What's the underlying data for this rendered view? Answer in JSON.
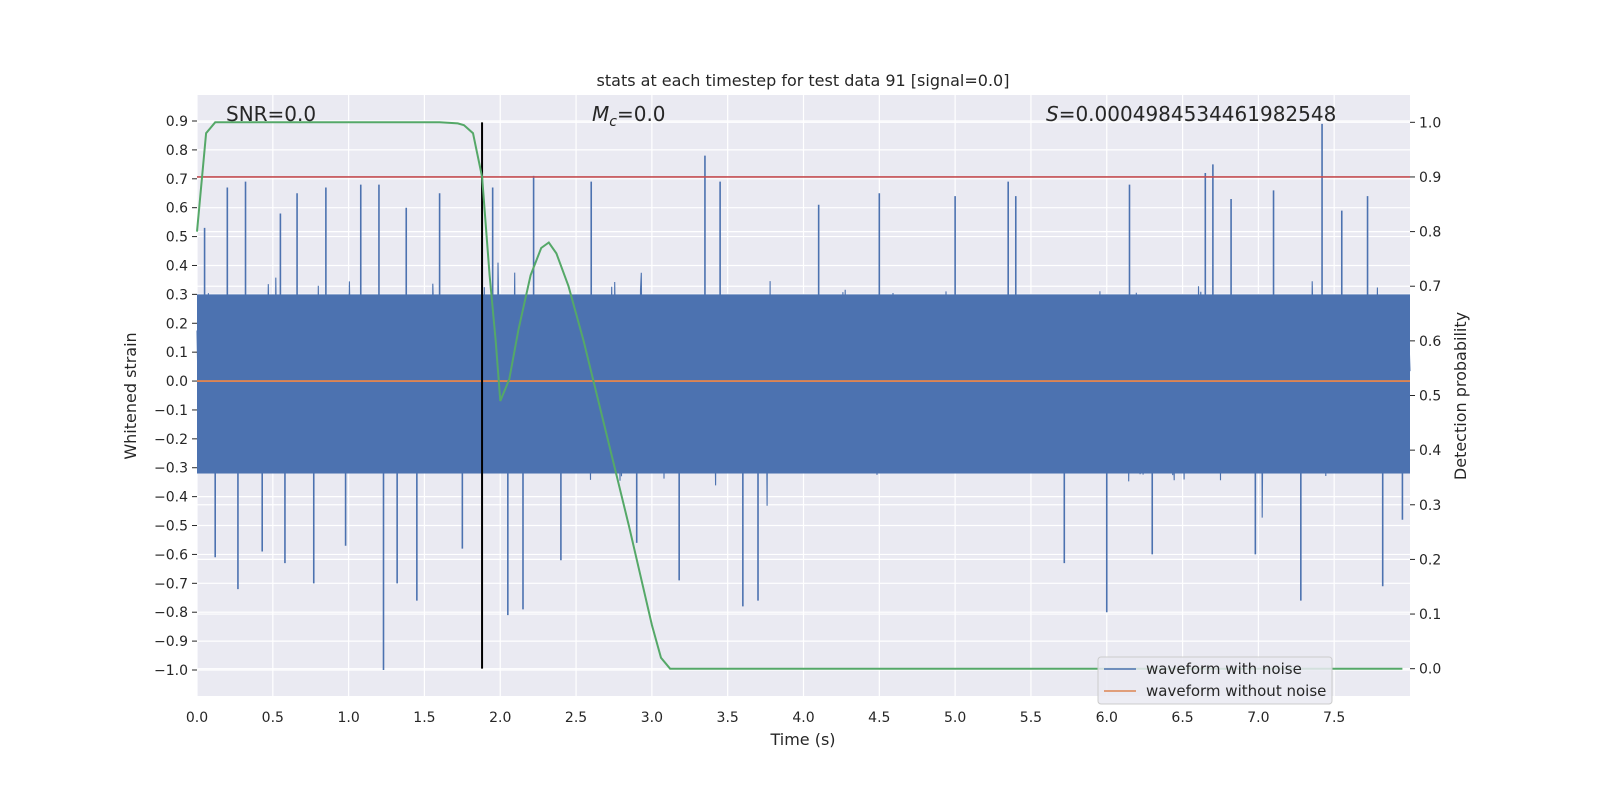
{
  "chart_data": {
    "type": "line",
    "title": "stats at each timestep for test data 91 [signal=0.0]",
    "xlabel": "Time (s)",
    "ylabel": "Whitened strain",
    "ylabel_right": "Detection probability",
    "xlim": [
      0.0,
      8.0
    ],
    "ylim": [
      -1.09,
      0.99
    ],
    "ylim_right": [
      -0.05,
      1.05
    ],
    "xticks": [
      "0.0",
      "0.5",
      "1.0",
      "1.5",
      "2.0",
      "2.5",
      "3.0",
      "3.5",
      "4.0",
      "4.5",
      "5.0",
      "5.5",
      "6.0",
      "6.5",
      "7.0",
      "7.5"
    ],
    "yticks": [
      "0.9",
      "0.8",
      "0.7",
      "0.6",
      "0.5",
      "0.4",
      "0.3",
      "0.2",
      "0.1",
      "0.0",
      "-0.1",
      "-0.2",
      "-0.3",
      "-0.4",
      "-0.5",
      "-0.6",
      "-0.7",
      "-0.8",
      "-0.9",
      "-1.0"
    ],
    "yticks_right": [
      "1.0",
      "0.9",
      "0.8",
      "0.7",
      "0.6",
      "0.5",
      "0.4",
      "0.3",
      "0.2",
      "0.1",
      "0.0"
    ],
    "annotations": {
      "snr": "SNR=0.0",
      "mc_symbol": "M",
      "mc_sub": "c",
      "mc_value": "=0.0",
      "s_symbol": "S",
      "s_value": "=0.0004984534461982548"
    },
    "threshold": 0.9,
    "marker_time": 1.88,
    "grid": true,
    "legend_position": "lower-right",
    "series": [
      {
        "name": "waveform with noise",
        "color": "#4c72b0",
        "axis": "left",
        "description_range": [
          -1.0,
          0.89
        ],
        "spikes": [
          {
            "x": 0.05,
            "y": 0.53
          },
          {
            "x": 0.12,
            "y": -0.61
          },
          {
            "x": 0.2,
            "y": 0.67
          },
          {
            "x": 0.27,
            "y": -0.72
          },
          {
            "x": 0.32,
            "y": 0.69
          },
          {
            "x": 0.43,
            "y": -0.59
          },
          {
            "x": 0.55,
            "y": 0.58
          },
          {
            "x": 0.58,
            "y": -0.63
          },
          {
            "x": 0.66,
            "y": 0.65
          },
          {
            "x": 0.77,
            "y": -0.7
          },
          {
            "x": 0.85,
            "y": 0.67
          },
          {
            "x": 0.98,
            "y": -0.57
          },
          {
            "x": 1.08,
            "y": 0.68
          },
          {
            "x": 1.2,
            "y": 0.68
          },
          {
            "x": 1.23,
            "y": -1.0
          },
          {
            "x": 1.32,
            "y": -0.7
          },
          {
            "x": 1.38,
            "y": 0.6
          },
          {
            "x": 1.45,
            "y": -0.76
          },
          {
            "x": 1.6,
            "y": 0.65
          },
          {
            "x": 1.75,
            "y": -0.58
          },
          {
            "x": 1.95,
            "y": 0.67
          },
          {
            "x": 2.05,
            "y": -0.81
          },
          {
            "x": 2.15,
            "y": -0.79
          },
          {
            "x": 2.22,
            "y": 0.71
          },
          {
            "x": 2.4,
            "y": -0.62
          },
          {
            "x": 2.6,
            "y": 0.69
          },
          {
            "x": 2.9,
            "y": -0.56
          },
          {
            "x": 3.18,
            "y": -0.69
          },
          {
            "x": 3.35,
            "y": 0.78
          },
          {
            "x": 3.45,
            "y": 0.69
          },
          {
            "x": 3.6,
            "y": -0.78
          },
          {
            "x": 3.7,
            "y": -0.76
          },
          {
            "x": 4.1,
            "y": 0.61
          },
          {
            "x": 4.5,
            "y": 0.65
          },
          {
            "x": 5.0,
            "y": 0.64
          },
          {
            "x": 5.35,
            "y": 0.69
          },
          {
            "x": 5.4,
            "y": 0.64
          },
          {
            "x": 5.72,
            "y": -0.63
          },
          {
            "x": 6.0,
            "y": -0.8
          },
          {
            "x": 6.15,
            "y": 0.68
          },
          {
            "x": 6.3,
            "y": -0.6
          },
          {
            "x": 6.65,
            "y": 0.72
          },
          {
            "x": 6.7,
            "y": 0.75
          },
          {
            "x": 6.82,
            "y": 0.63
          },
          {
            "x": 6.98,
            "y": -0.6
          },
          {
            "x": 7.1,
            "y": 0.66
          },
          {
            "x": 7.28,
            "y": -0.76
          },
          {
            "x": 7.42,
            "y": 0.89
          },
          {
            "x": 7.55,
            "y": 0.59
          },
          {
            "x": 7.72,
            "y": 0.64
          },
          {
            "x": 7.82,
            "y": -0.71
          },
          {
            "x": 7.95,
            "y": -0.48
          }
        ]
      },
      {
        "name": "waveform without noise",
        "color": "#dd8452",
        "axis": "left",
        "x": [
          0.0,
          8.0
        ],
        "y": [
          0.0,
          0.0
        ]
      },
      {
        "name": "",
        "color": "#55a868",
        "axis": "right",
        "x": [
          0.0,
          0.06,
          0.12,
          0.3,
          0.6,
          1.0,
          1.4,
          1.6,
          1.72,
          1.76,
          1.82,
          1.88,
          1.93,
          1.97,
          2.0,
          2.06,
          2.12,
          2.2,
          2.27,
          2.32,
          2.37,
          2.45,
          2.55,
          2.7,
          2.85,
          2.95,
          3.0,
          3.06,
          3.12,
          3.2,
          4.0,
          5.0,
          6.0,
          7.0,
          7.7,
          7.95
        ],
        "y": [
          0.8,
          0.98,
          1.0,
          1.0,
          1.0,
          1.0,
          1.0,
          1.0,
          0.998,
          0.995,
          0.98,
          0.9,
          0.72,
          0.6,
          0.49,
          0.53,
          0.62,
          0.72,
          0.77,
          0.78,
          0.76,
          0.7,
          0.6,
          0.43,
          0.26,
          0.14,
          0.08,
          0.02,
          0.0,
          0.0,
          0.0,
          0.0,
          0.0,
          0.0,
          0.0,
          0.0
        ]
      },
      {
        "name": "",
        "color": "#c44e52",
        "axis": "right",
        "x": [
          0.0,
          8.0
        ],
        "y": [
          0.9,
          0.9
        ]
      }
    ]
  }
}
